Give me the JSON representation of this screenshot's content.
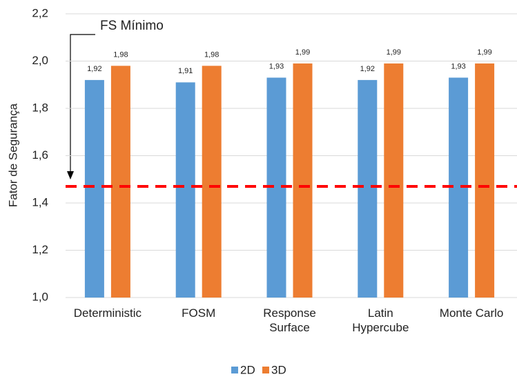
{
  "chart_data": {
    "type": "bar",
    "ylabel": "Fator de Segurança",
    "categories": [
      "Deterministic",
      "FOSM",
      "Response\nSurface",
      "Latin\nHypercube",
      "Monte Carlo"
    ],
    "series": [
      {
        "name": "2D",
        "color": "#5b9bd5",
        "values": [
          1.92,
          1.91,
          1.93,
          1.92,
          1.93
        ],
        "value_labels": [
          "1,92",
          "1,91",
          "1,93",
          "1,92",
          "1,93"
        ]
      },
      {
        "name": "3D",
        "color": "#ed7d31",
        "values": [
          1.98,
          1.98,
          1.99,
          1.99,
          1.99
        ],
        "value_labels": [
          "1,98",
          "1,98",
          "1,99",
          "1,99",
          "1,99"
        ]
      }
    ],
    "ylim": [
      1.0,
      2.2
    ],
    "yticks": [
      {
        "value": 1.0,
        "label": "1,0"
      },
      {
        "value": 1.2,
        "label": "1,2"
      },
      {
        "value": 1.4,
        "label": "1,4"
      },
      {
        "value": 1.6,
        "label": "1,6"
      },
      {
        "value": 1.8,
        "label": "1,8"
      },
      {
        "value": 2.0,
        "label": "2,0"
      },
      {
        "value": 2.2,
        "label": "2,2"
      }
    ],
    "grid": true,
    "reference_line": {
      "value": 1.47,
      "color": "#ff0000"
    },
    "annotation": "FS Mínimo",
    "legend": "bottom"
  }
}
